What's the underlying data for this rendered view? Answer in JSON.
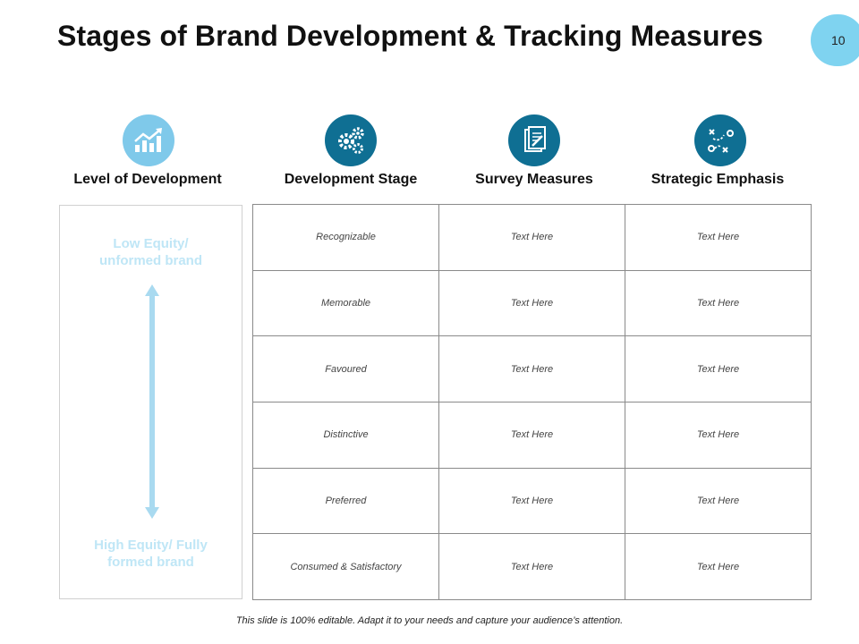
{
  "slide": {
    "title": "Stages of Brand Development & Tracking Measures",
    "page_number": "10",
    "footer": "This slide is 100% editable. Adapt it to your needs and capture your audience’s attention."
  },
  "colors": {
    "icon_light": "#7fc9ea",
    "icon_dark": "#0f6f93",
    "page_badge": "#7fd3f0",
    "equity_text": "#bfe6f6",
    "arrow": "#a9daf0"
  },
  "columns": [
    {
      "label": "Level of Development",
      "icon": "growth-chart-icon"
    },
    {
      "label": "Development Stage",
      "icon": "gears-icon"
    },
    {
      "label": "Survey Measures",
      "icon": "document-survey-icon"
    },
    {
      "label": "Strategic Emphasis",
      "icon": "strategy-plan-icon"
    }
  ],
  "equity": {
    "low": "Low Equity/\nunformed brand",
    "high": "High Equity/ Fully\nformed brand"
  },
  "rows": [
    {
      "stage": "Recognizable",
      "survey": "Text Here",
      "emphasis": "Text Here"
    },
    {
      "stage": "Memorable",
      "survey": "Text Here",
      "emphasis": "Text Here"
    },
    {
      "stage": "Favoured",
      "survey": "Text Here",
      "emphasis": "Text Here"
    },
    {
      "stage": "Distinctive",
      "survey": "Text Here",
      "emphasis": "Text Here"
    },
    {
      "stage": "Preferred",
      "survey": "Text Here",
      "emphasis": "Text Here"
    },
    {
      "stage": "Consumed & Satisfactory",
      "survey": "Text Here",
      "emphasis": "Text Here"
    }
  ]
}
